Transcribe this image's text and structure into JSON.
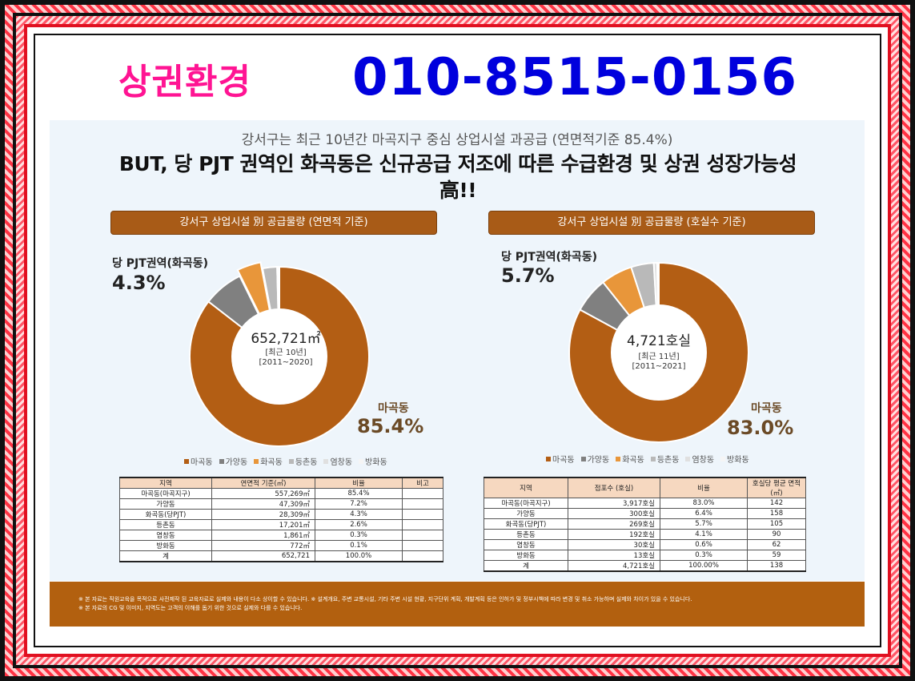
{
  "header": {
    "brand": "상권환경",
    "phone": "010-8515-0156"
  },
  "subtitle": "강서구는 최근 10년간 마곡지구 중심 상업시설 과공급 (연면적기준 85.4%)",
  "headline": "BUT, 당 PJT 권역인 화곡동은 신규공급 저조에 따른 수급환경 및 상권 성장가능성 高!!",
  "colors": {
    "magok": "#b35e14",
    "gayang": "#808080",
    "hwagok": "#e8963a",
    "deungchon": "#b9b9b9",
    "yeomchang": "#e0e0e0",
    "banghwa": "#f5f5f5"
  },
  "left": {
    "section_title": "강서구 상업시설 別 공급물량 (연면적 기준)",
    "callout_label": "당 PJT권역(화곡동)",
    "callout_pct": "4.3%",
    "main_label": "마곡동",
    "main_pct": "85.4%",
    "center_total": "652,721㎡",
    "center_period": "[최근 10년]",
    "center_range": "[2011~2020]",
    "legend": [
      "마곡동",
      "가양동",
      "화곡동",
      "등촌동",
      "염창동",
      "방화동"
    ],
    "table": {
      "headers": [
        "지역",
        "연면적 기준(㎡)",
        "비율",
        "비고"
      ],
      "rows": [
        [
          "마곡동(마곡지구)",
          "557,269㎡",
          "85.4%",
          ""
        ],
        [
          "가양동",
          "47,309㎡",
          "7.2%",
          ""
        ],
        [
          "화곡동(당PJT)",
          "28,309㎡",
          "4.3%",
          ""
        ],
        [
          "등촌동",
          "17,201㎡",
          "2.6%",
          ""
        ],
        [
          "염창동",
          "1,861㎡",
          "0.3%",
          ""
        ],
        [
          "방화동",
          "772㎡",
          "0.1%",
          ""
        ],
        [
          "계",
          "652,721",
          "100.0%",
          ""
        ]
      ]
    }
  },
  "right": {
    "section_title": "강서구 상업시설 別 공급물량 (호실수 기준)",
    "callout_label": "당 PJT권역(화곡동)",
    "callout_pct": "5.7%",
    "main_label": "마곡동",
    "main_pct": "83.0%",
    "center_total": "4,721호실",
    "center_period": "[최근 11년]",
    "center_range": "[2011~2021]",
    "legend": [
      "마곡동",
      "가양동",
      "화곡동",
      "등촌동",
      "염창동",
      "방화동"
    ],
    "table": {
      "headers": [
        "지역",
        "점포수 (호실)",
        "비율",
        "호실당 평균 면적 (㎡)"
      ],
      "rows": [
        [
          "마곡동(마곡지구)",
          "3,917호실",
          "83.0%",
          "142"
        ],
        [
          "가양동",
          "300호실",
          "6.4%",
          "158"
        ],
        [
          "화곡동(당PJT)",
          "269호실",
          "5.7%",
          "105"
        ],
        [
          "등촌동",
          "192호실",
          "4.1%",
          "90"
        ],
        [
          "염창동",
          "30호실",
          "0.6%",
          "62"
        ],
        [
          "방화동",
          "13호실",
          "0.3%",
          "59"
        ],
        [
          "계",
          "4,721호실",
          "100.00%",
          "138"
        ]
      ]
    }
  },
  "chart_data": [
    {
      "type": "pie",
      "title": "강서구 상업시설 別 공급물량 (연면적 기준)",
      "categories": [
        "마곡동",
        "가양동",
        "화곡동",
        "등촌동",
        "염창동",
        "방화동"
      ],
      "values": [
        85.4,
        7.2,
        4.3,
        2.6,
        0.3,
        0.1
      ]
    },
    {
      "type": "pie",
      "title": "강서구 상업시설 別 공급물량 (호실수 기준)",
      "categories": [
        "마곡동",
        "가양동",
        "화곡동",
        "등촌동",
        "염창동",
        "방화동"
      ],
      "values": [
        83.0,
        6.4,
        5.7,
        4.1,
        0.6,
        0.3
      ]
    }
  ],
  "footer": {
    "note1": "※ 본 자료는 직원교육을 목적으로 사전제작 된 교육자료로 실제와 내용이 다소 상이할 수 있습니다. ※ 설계개요, 주변 교통시설, 기타 주변 시설 현황, 지구단위 계획, 개발계획 등은 인허가 및 정부시책에 따라 변경 및 취소 가능하며 실제와 차이가 있을 수 있습니다.",
    "note2": "※ 본 자료의 CG 및 이미지, 지역도는 고객의 이해를 돕기 위한 것으로 실제와 다를 수 있습니다."
  }
}
